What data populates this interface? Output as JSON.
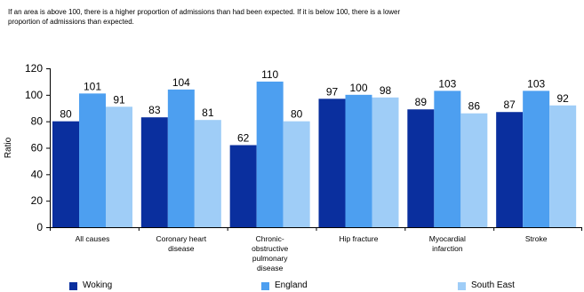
{
  "intro": {
    "line1": "If an area is above 100, there is a higher proportion of admissions than had been expected. If it is below 100, there is a lower",
    "line2": "proportion of admissions than expected."
  },
  "chart_data": {
    "type": "bar",
    "title": "",
    "xlabel": "",
    "ylabel": "Ratio",
    "ylim": [
      0,
      120
    ],
    "yticks": [
      0,
      20,
      40,
      60,
      80,
      100,
      120
    ],
    "grid": false,
    "legend_position": "bottom",
    "categories": [
      [
        "All causes"
      ],
      [
        "Coronary heart",
        "disease"
      ],
      [
        "Chronic-",
        "obstructive",
        "pulmonary",
        "disease"
      ],
      [
        "Hip fracture"
      ],
      [
        "Myocardial",
        "infarction"
      ],
      [
        "Stroke"
      ]
    ],
    "series": [
      {
        "name": "Woking",
        "color": "#0a2f9e",
        "values": [
          80,
          83,
          62,
          97,
          89,
          87
        ]
      },
      {
        "name": "England",
        "color": "#4d9ff0",
        "values": [
          101,
          104,
          110,
          100,
          103,
          103
        ]
      },
      {
        "name": "South East",
        "color": "#9fcdf7",
        "values": [
          91,
          81,
          80,
          98,
          86,
          92
        ]
      }
    ]
  }
}
